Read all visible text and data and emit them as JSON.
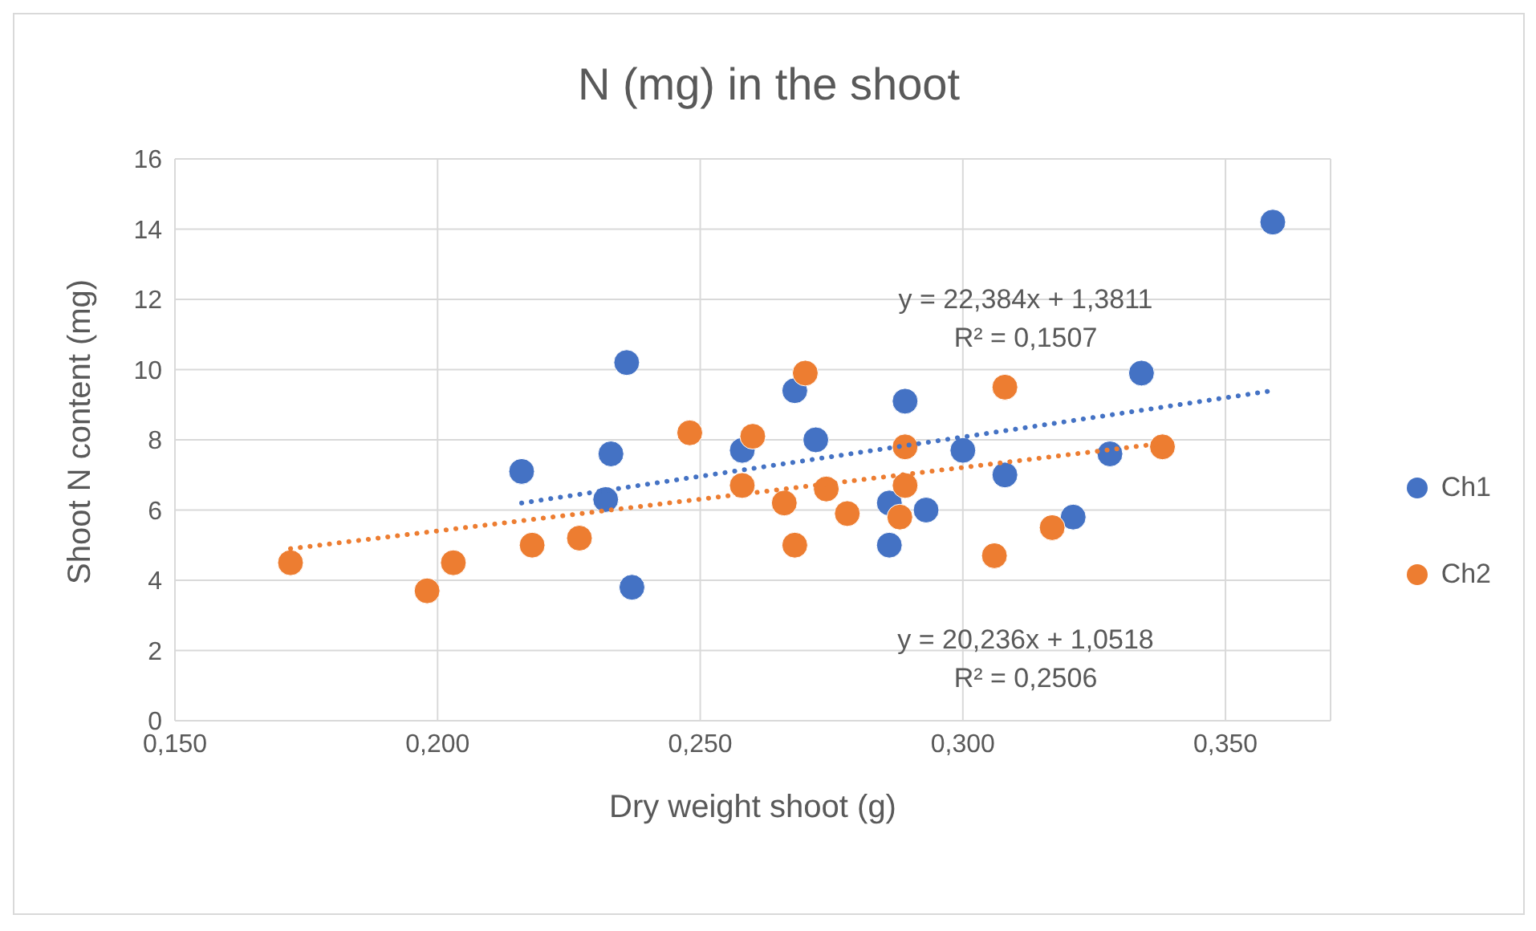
{
  "chart_data": {
    "type": "scatter",
    "title": "N (mg) in the shoot",
    "xlabel": "Dry weight shoot (g)",
    "ylabel": "Shoot N content (mg)",
    "xlim": [
      0.15,
      0.37
    ],
    "xticks": [
      {
        "value": 0.15,
        "label": "0,150"
      },
      {
        "value": 0.2,
        "label": "0,200"
      },
      {
        "value": 0.25,
        "label": "0,250"
      },
      {
        "value": 0.3,
        "label": "0,300"
      },
      {
        "value": 0.35,
        "label": "0,350"
      }
    ],
    "ylim": [
      0,
      16
    ],
    "yticks": [
      0,
      2,
      4,
      6,
      8,
      10,
      12,
      14,
      16
    ],
    "grid": true,
    "legend": "right",
    "marker": "circle",
    "series": [
      {
        "name": "Ch1",
        "color": "#4472c4",
        "x": [
          0.216,
          0.232,
          0.233,
          0.236,
          0.237,
          0.258,
          0.268,
          0.272,
          0.286,
          0.286,
          0.289,
          0.293,
          0.3,
          0.308,
          0.321,
          0.328,
          0.334,
          0.359
        ],
        "values": [
          7.1,
          6.3,
          7.6,
          10.2,
          3.8,
          7.7,
          9.4,
          8.0,
          6.2,
          5.0,
          9.1,
          6.0,
          7.7,
          7.0,
          5.8,
          7.6,
          9.9,
          14.2
        ]
      },
      {
        "name": "Ch2",
        "color": "#ed7d31",
        "x": [
          0.172,
          0.198,
          0.203,
          0.218,
          0.227,
          0.248,
          0.258,
          0.26,
          0.266,
          0.268,
          0.27,
          0.274,
          0.278,
          0.288,
          0.289,
          0.289,
          0.306,
          0.308,
          0.317,
          0.338
        ],
        "values": [
          4.5,
          3.7,
          4.5,
          5.0,
          5.2,
          8.2,
          6.7,
          8.1,
          6.2,
          5.0,
          9.9,
          6.6,
          5.9,
          5.8,
          6.7,
          7.8,
          4.7,
          9.5,
          5.5,
          7.8
        ]
      },
      {
        "type": "line",
        "color": "#4472c4",
        "line_style": "dotted",
        "marker": "none",
        "x": [
          0.216,
          0.359
        ],
        "values": [
          6.2,
          9.4
        ]
      },
      {
        "type": "line",
        "color": "#ed7d31",
        "line_style": "dotted",
        "marker": "none",
        "x": [
          0.172,
          0.338
        ],
        "values": [
          4.9,
          7.9
        ]
      }
    ],
    "annotations": [
      "y = 22,384x + 1,3811",
      "R² = 0,1507",
      "y = 20,236x + 1,0518",
      "R² = 0,2506"
    ]
  }
}
